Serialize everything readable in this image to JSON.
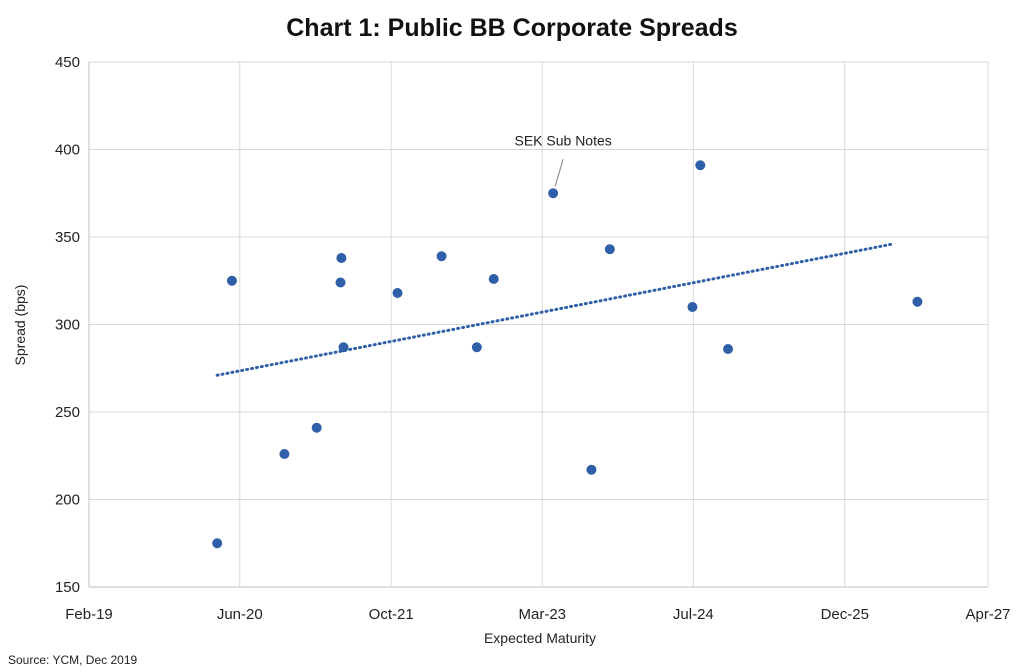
{
  "chart_data": {
    "type": "scatter",
    "title": "Chart 1: Public BB Corporate Spreads",
    "xlabel": "Expected Maturity",
    "ylabel": "Spread (bps)",
    "source": "Source: YCM, Dec 2019",
    "xlim": [
      "2019-02-01",
      "2027-04-01"
    ],
    "ylim": [
      150,
      450
    ],
    "x_ticks": [
      "Feb-19",
      "Jun-20",
      "Oct-21",
      "Mar-23",
      "Jul-24",
      "Dec-25",
      "Apr-27"
    ],
    "x_tick_dates": [
      "2019-02-01",
      "2020-06-15",
      "2021-10-30",
      "2023-03-15",
      "2024-07-28",
      "2025-12-12",
      "2027-04-01"
    ],
    "y_ticks": [
      150,
      200,
      250,
      300,
      350,
      400,
      450
    ],
    "grid": true,
    "series": [
      {
        "color": "#2e5fa8",
        "points": [
          {
            "x": "2020-04-01",
            "y": 175
          },
          {
            "x": "2020-05-20",
            "y": 325
          },
          {
            "x": "2020-11-10",
            "y": 226
          },
          {
            "x": "2021-02-25",
            "y": 241
          },
          {
            "x": "2021-05-15",
            "y": 324
          },
          {
            "x": "2021-05-18",
            "y": 338
          },
          {
            "x": "2021-05-25",
            "y": 287
          },
          {
            "x": "2021-11-20",
            "y": 318
          },
          {
            "x": "2022-04-15",
            "y": 339
          },
          {
            "x": "2022-08-10",
            "y": 287
          },
          {
            "x": "2022-10-05",
            "y": 326
          },
          {
            "x": "2023-04-20",
            "y": 375
          },
          {
            "x": "2023-08-25",
            "y": 217
          },
          {
            "x": "2023-10-25",
            "y": 343
          },
          {
            "x": "2024-07-25",
            "y": 310
          },
          {
            "x": "2024-08-20",
            "y": 391
          },
          {
            "x": "2024-11-20",
            "y": 286
          },
          {
            "x": "2026-08-10",
            "y": 313
          }
        ]
      }
    ],
    "trendline": {
      "style": "dotted",
      "color": "#2e5fa8",
      "start": {
        "x": "2020-04-01",
        "y": 271
      },
      "end": {
        "x": "2026-05-20",
        "y": 346
      }
    },
    "annotations": [
      {
        "text": "SEK Sub Notes",
        "target": {
          "x": "2023-04-20",
          "y": 375
        }
      }
    ]
  }
}
